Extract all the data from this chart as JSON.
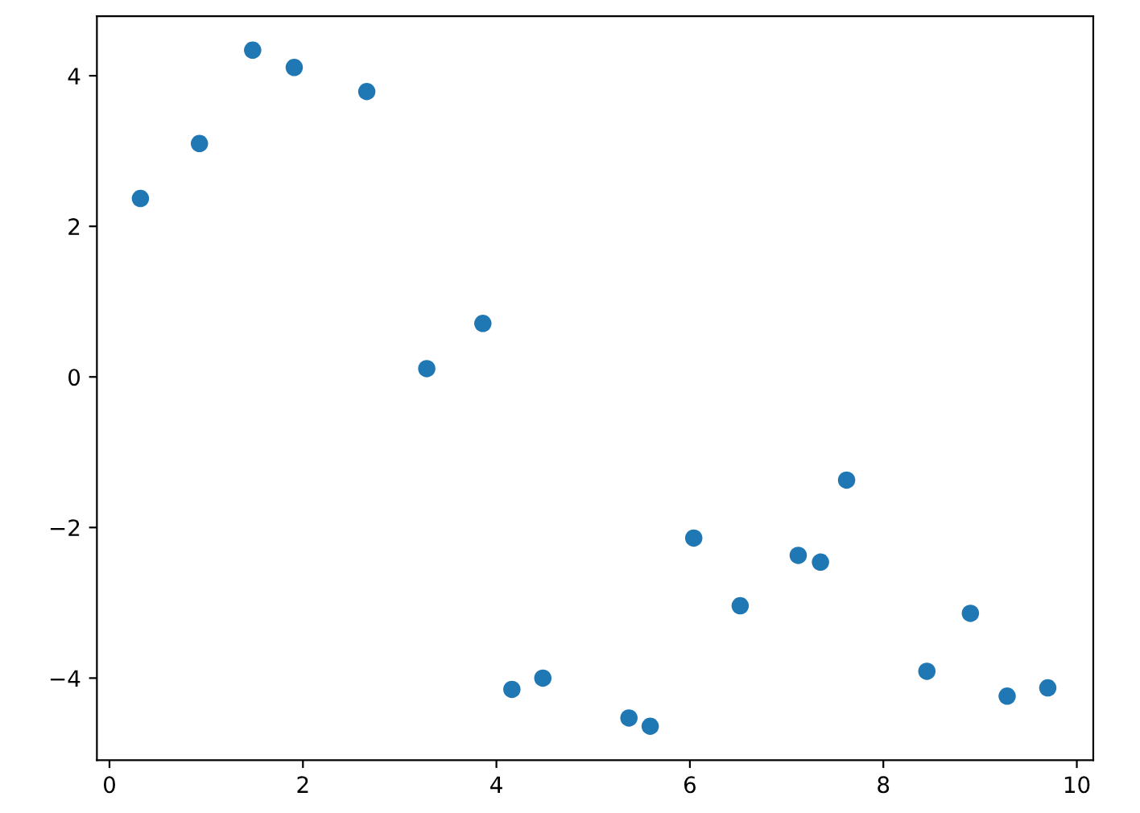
{
  "chart_data": {
    "type": "scatter",
    "x": [
      0.32,
      0.93,
      1.48,
      1.91,
      2.66,
      3.28,
      3.86,
      4.16,
      4.48,
      5.37,
      5.59,
      6.04,
      6.52,
      7.12,
      7.35,
      7.62,
      8.45,
      8.9,
      9.28,
      9.7
    ],
    "series": [
      {
        "color": "#1f77b4",
        "values": [
          2.37,
          3.1,
          4.34,
          4.11,
          3.79,
          0.11,
          0.71,
          -4.15,
          -4.0,
          -4.53,
          -4.64,
          -2.14,
          -3.04,
          -2.37,
          -2.46,
          -1.37,
          -3.91,
          -3.14,
          -4.24,
          -4.13
        ]
      }
    ],
    "xlim": [
      -0.13,
      10.17
    ],
    "ylim": [
      -5.09,
      4.79
    ],
    "xticks": [
      0,
      2,
      4,
      6,
      8,
      10
    ],
    "yticks": [
      {
        "value": -4,
        "label": "−4"
      },
      {
        "value": -2,
        "label": "−2"
      },
      0,
      2,
      4
    ],
    "marker": "circle",
    "grid": false
  }
}
